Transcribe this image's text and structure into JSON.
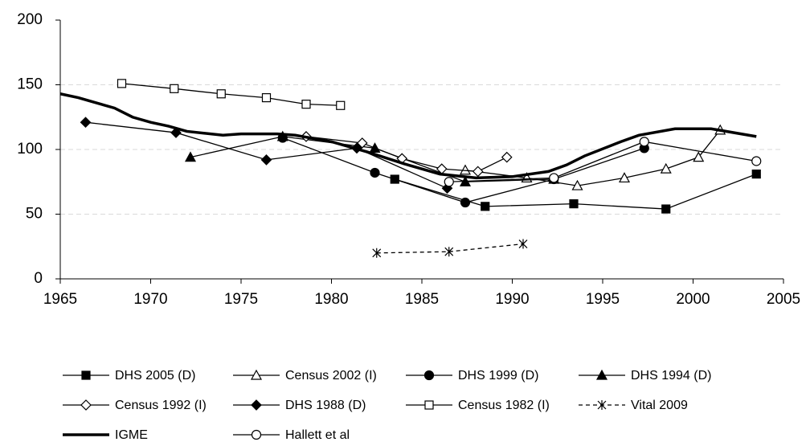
{
  "chart_data": {
    "type": "line",
    "xlim": [
      1965,
      2005
    ],
    "xticks": [
      1965,
      1970,
      1975,
      1980,
      1985,
      1990,
      1995,
      2000,
      2005
    ],
    "ylim": [
      0,
      200
    ],
    "yticks": [
      0,
      50,
      100,
      150,
      200
    ],
    "grid": true,
    "legend": "bottom",
    "series": [
      {
        "name": "DHS 2005 (D)",
        "color": "#000000",
        "marker": "square",
        "filled": true,
        "dashed": false,
        "width": 1.3,
        "x": [
          1983.5,
          1988.5,
          1993.4,
          1998.5,
          2003.5
        ],
        "values": [
          77,
          56,
          58,
          54,
          81
        ]
      },
      {
        "name": "Census 2002 (I)",
        "color": "#000000",
        "marker": "triangle",
        "filled": false,
        "dashed": false,
        "width": 1.3,
        "x": [
          1987.4,
          1990.8,
          1993.6,
          1996.2,
          1998.5,
          2000.3,
          2001.5
        ],
        "values": [
          84,
          78,
          72,
          78,
          85,
          94,
          115
        ]
      },
      {
        "name": "DHS 1999 (D)",
        "color": "#000000",
        "marker": "circle",
        "filled": true,
        "dashed": false,
        "width": 1.3,
        "x": [
          1977.3,
          1982.4,
          1987.4,
          1992.3,
          1997.3
        ],
        "values": [
          109,
          82,
          59,
          77,
          101
        ]
      },
      {
        "name": "DHS 1994 (D)",
        "color": "#000000",
        "marker": "triangle",
        "filled": true,
        "dashed": false,
        "width": 1.3,
        "x": [
          1972.2,
          1977.3,
          1982.4,
          1987.4,
          1992.3
        ],
        "values": [
          94,
          110,
          101,
          75,
          77
        ]
      },
      {
        "name": "Census 1992 (I)",
        "color": "#000000",
        "marker": "diamond",
        "filled": false,
        "dashed": false,
        "width": 1.3,
        "x": [
          1978.6,
          1981.7,
          1983.9,
          1986.1,
          1988.1,
          1989.7
        ],
        "values": [
          110,
          105,
          93,
          85,
          83,
          94
        ]
      },
      {
        "name": "DHS 1988 (D)",
        "color": "#000000",
        "marker": "diamond",
        "filled": true,
        "dashed": false,
        "width": 1.3,
        "x": [
          1966.4,
          1971.4,
          1976.4,
          1981.4,
          1986.4
        ],
        "values": [
          121,
          113,
          92,
          101,
          70
        ]
      },
      {
        "name": "Census 1982 (I)",
        "color": "#000000",
        "marker": "square",
        "filled": false,
        "dashed": false,
        "width": 1.3,
        "x": [
          1968.4,
          1971.3,
          1973.9,
          1976.4,
          1978.6,
          1980.5
        ],
        "values": [
          151,
          147,
          143,
          140,
          135,
          134
        ]
      },
      {
        "name": "Vital 2009",
        "color": "#000000",
        "marker": "star",
        "filled": false,
        "dashed": true,
        "width": 1.3,
        "x": [
          1982.5,
          1986.5,
          1990.6
        ],
        "values": [
          20,
          21,
          27
        ]
      },
      {
        "name": "IGME",
        "color": "#000000",
        "marker": "none",
        "filled": false,
        "dashed": false,
        "width": 3.5,
        "x": [
          1965,
          1966,
          1968,
          1969,
          1970,
          1971,
          1972,
          1974,
          1975,
          1977,
          1978,
          1980,
          1982,
          1984,
          1986,
          1988,
          1990,
          1992,
          1993,
          1994,
          1996,
          1997,
          1999,
          2001,
          2003.5
        ],
        "values": [
          143,
          140,
          132,
          125,
          121,
          118,
          114,
          111,
          112,
          112,
          111,
          106,
          98,
          89,
          81,
          78,
          79,
          83,
          88,
          95,
          106,
          111,
          116,
          116,
          110
        ]
      },
      {
        "name": "Hallett et al",
        "color": "#000000",
        "marker": "circle",
        "filled": false,
        "dashed": false,
        "width": 1.3,
        "x": [
          1986.5,
          1992.3,
          1997.3,
          2003.5
        ],
        "values": [
          75,
          78,
          106,
          91
        ]
      }
    ]
  }
}
